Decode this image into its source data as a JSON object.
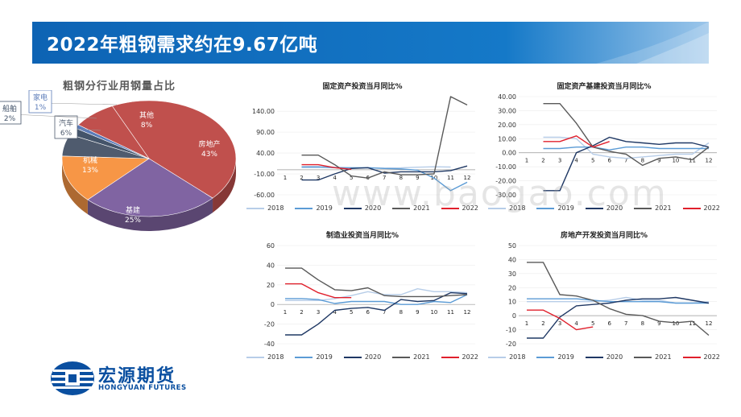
{
  "page": {
    "title": "2022年粗钢需求约在9.67亿吨",
    "watermark": "www.baogao.com",
    "logo": {
      "name_cn": "宏源期货",
      "name_en": "HONGYUAN FUTURES"
    },
    "colors": {
      "banner": "#1070c0",
      "brand": "#0a4fa0"
    }
  },
  "chart_data": [
    {
      "type": "pie",
      "title": "粗钢分行业用钢量占比",
      "slices": [
        {
          "label": "房地产",
          "value": 43,
          "value_label": "43%",
          "color": "#c0504d"
        },
        {
          "label": "基建",
          "value": 25,
          "value_label": "25%",
          "color": "#8064a2"
        },
        {
          "label": "机械",
          "value": 13,
          "value_label": "13%",
          "color": "#f79646"
        },
        {
          "label": "汽车",
          "value": 6,
          "value_label": "6%",
          "color": "#4f5b6e"
        },
        {
          "label": "船舶",
          "value": 2,
          "value_label": "2%",
          "color": "#44546a"
        },
        {
          "label": "家电",
          "value": 1,
          "value_label": "1%",
          "color": "#5b7bb8"
        },
        {
          "label": "其他",
          "value": 8,
          "value_label": "8%",
          "color": "#c0504d"
        }
      ]
    },
    {
      "type": "line",
      "title": "固定资产投资当月同比%",
      "categories": [
        "1",
        "2",
        "3",
        "4",
        "5",
        "6",
        "7",
        "8",
        "9",
        "10",
        "11",
        "12"
      ],
      "yticks": [
        "140.00",
        "90.00",
        "40.00",
        "-10.00",
        "-60.00"
      ],
      "ylim": [
        -60,
        175
      ],
      "series": [
        {
          "name": "2018",
          "color": "#b7cde8",
          "values": [
            null,
            7.8,
            7.5,
            6,
            5,
            4.8,
            4,
            4.5,
            6,
            7,
            6.5,
            null
          ]
        },
        {
          "name": "2019",
          "color": "#5b9bd5",
          "values": [
            null,
            6,
            6.5,
            5,
            4.5,
            5,
            3,
            2,
            -1,
            -20,
            -50,
            -30
          ]
        },
        {
          "name": "2020",
          "color": "#1f3864",
          "values": [
            null,
            -24.5,
            -24.5,
            -10,
            3,
            5,
            -8,
            -5,
            -5,
            -5,
            -2,
            9
          ]
        },
        {
          "name": "2021",
          "color": "#595959",
          "values": [
            null,
            35,
            35,
            12,
            -15,
            -20,
            -5,
            -12,
            -12,
            -10,
            175,
            155
          ]
        },
        {
          "name": "2022",
          "color": "#e0202c",
          "values": [
            null,
            12,
            12,
            5,
            1,
            null,
            null,
            null,
            null,
            null,
            null,
            null
          ]
        }
      ]
    },
    {
      "type": "line",
      "title": "固定资产基建投资当月同比%",
      "categories": [
        "1",
        "2",
        "3",
        "4",
        "5",
        "6",
        "7",
        "8",
        "9",
        "10",
        "11",
        "12"
      ],
      "yticks": [
        "40.00",
        "30.00",
        "20.00",
        "10.00",
        "0.00",
        "-10.00",
        "-20.00",
        "-30.00"
      ],
      "ylim": [
        -30,
        40
      ],
      "series": [
        {
          "name": "2018",
          "color": "#b7cde8",
          "values": [
            null,
            11,
            11,
            10,
            -1,
            -3,
            -4,
            -3,
            -2,
            -1,
            -1,
            7
          ]
        },
        {
          "name": "2019",
          "color": "#5b9bd5",
          "values": [
            null,
            3,
            3,
            4,
            4,
            2,
            4,
            4,
            3,
            3,
            3,
            3
          ]
        },
        {
          "name": "2020",
          "color": "#1f3864",
          "values": [
            null,
            -27,
            -27,
            0,
            5,
            11,
            8,
            7,
            6,
            7,
            7,
            4
          ]
        },
        {
          "name": "2021",
          "color": "#595959",
          "values": [
            null,
            35,
            35,
            21,
            4,
            1,
            -1,
            -9,
            -4,
            -3,
            -5,
            4
          ]
        },
        {
          "name": "2022",
          "color": "#e0202c",
          "values": [
            null,
            8,
            8,
            12,
            4,
            8,
            null,
            null,
            null,
            null,
            null,
            null
          ]
        }
      ]
    },
    {
      "type": "line",
      "title": "制造业投资当月同比%",
      "categories": [
        "1",
        "2",
        "3",
        "4",
        "5",
        "6",
        "7",
        "8",
        "9",
        "10",
        "11",
        "12"
      ],
      "yticks": [
        "60",
        "40",
        "20",
        "0",
        "-20",
        "-40"
      ],
      "ylim": [
        -40,
        60
      ],
      "series": [
        {
          "name": "2018",
          "color": "#b7cde8",
          "values": [
            4,
            4,
            4,
            6,
            9,
            13,
            10,
            10,
            16,
            13,
            13,
            12
          ]
        },
        {
          "name": "2019",
          "color": "#5b9bd5",
          "values": [
            6,
            6,
            5,
            1,
            3,
            3,
            3,
            0,
            0,
            3,
            2,
            10
          ]
        },
        {
          "name": "2020",
          "color": "#1f3864",
          "values": [
            -31,
            -31,
            -20,
            -6,
            -4,
            -3,
            -6,
            5,
            3,
            4,
            12,
            11
          ]
        },
        {
          "name": "2021",
          "color": "#595959",
          "values": [
            37,
            37,
            25,
            15,
            14,
            17,
            9,
            8,
            8,
            8,
            9,
            10
          ]
        },
        {
          "name": "2022",
          "color": "#e0202c",
          "values": [
            21,
            21,
            12,
            7,
            7,
            null,
            null,
            null,
            null,
            null,
            null,
            null
          ]
        }
      ]
    },
    {
      "type": "line",
      "title": "房地产开发投资当月同比%",
      "categories": [
        "1",
        "2",
        "3",
        "4",
        "5",
        "6",
        "7",
        "8",
        "9",
        "10",
        "11",
        "12"
      ],
      "yticks": [
        "50",
        "40",
        "30",
        "20",
        "10",
        "0",
        "-10",
        "-20"
      ],
      "ylim": [
        -20,
        50
      ],
      "series": [
        {
          "name": "2018",
          "color": "#b7cde8",
          "values": [
            10,
            10,
            10,
            10,
            10,
            11,
            13,
            11,
            11,
            9,
            9,
            10
          ]
        },
        {
          "name": "2019",
          "color": "#5b9bd5",
          "values": [
            12,
            12,
            12,
            12,
            11,
            10,
            10,
            10,
            10,
            9,
            9,
            9
          ]
        },
        {
          "name": "2020",
          "color": "#1f3864",
          "values": [
            -16,
            -16,
            -1,
            7,
            8,
            9,
            11,
            12,
            12,
            13,
            11,
            9
          ]
        },
        {
          "name": "2021",
          "color": "#595959",
          "values": [
            38,
            38,
            15,
            14,
            11,
            5,
            1,
            0,
            -4,
            -5,
            -4,
            -14
          ]
        },
        {
          "name": "2022",
          "color": "#e0202c",
          "values": [
            4,
            4,
            -2,
            -10,
            -8,
            null,
            null,
            null,
            null,
            null,
            null,
            null
          ]
        }
      ]
    }
  ]
}
